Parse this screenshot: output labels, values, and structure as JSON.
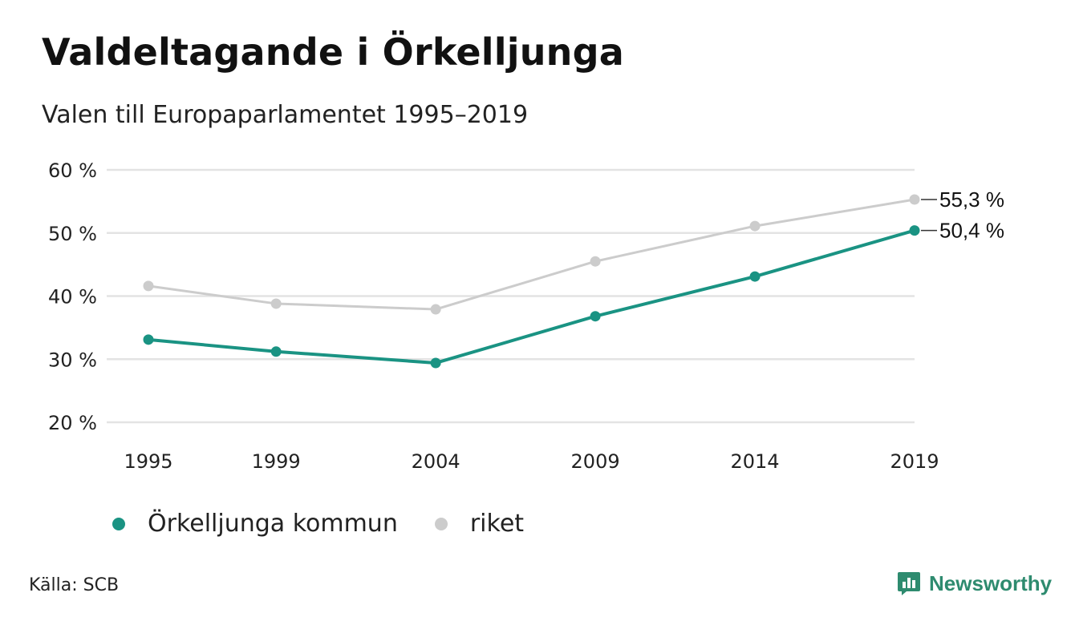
{
  "header": {
    "title": "Valdeltagande i Örkelljunga",
    "subtitle": "Valen till Europaparlamentet 1995–2019"
  },
  "chart_data": {
    "type": "line",
    "categories": [
      "1995",
      "1999",
      "2004",
      "2009",
      "2014",
      "2019"
    ],
    "x": [
      1995,
      1999,
      2004,
      2009,
      2014,
      2019
    ],
    "series": [
      {
        "name": "riket",
        "color": "#cccccc",
        "values": [
          41.6,
          38.8,
          37.9,
          45.5,
          51.1,
          55.3
        ]
      },
      {
        "name": "Örkelljunga kommun",
        "color": "#1a9383",
        "values": [
          33.1,
          31.2,
          29.4,
          36.8,
          43.1,
          50.4
        ]
      }
    ],
    "yticks": [
      20,
      30,
      40,
      50,
      60
    ],
    "ytick_labels": [
      "20 %",
      "30 %",
      "40 %",
      "50 %",
      "60 %"
    ],
    "ylim": [
      20,
      60
    ],
    "end_labels": [
      "55,3 %",
      "50,4 %"
    ],
    "grid": true,
    "legend_placement": "bottom"
  },
  "legend": {
    "items": [
      {
        "label": "Örkelljunga kommun",
        "color": "#1a9383"
      },
      {
        "label": "riket",
        "color": "#cccccc"
      }
    ]
  },
  "footer": {
    "source": "Källa: SCB",
    "brand": "Newsworthy",
    "brand_icon": "newsworthy-logo-icon"
  }
}
